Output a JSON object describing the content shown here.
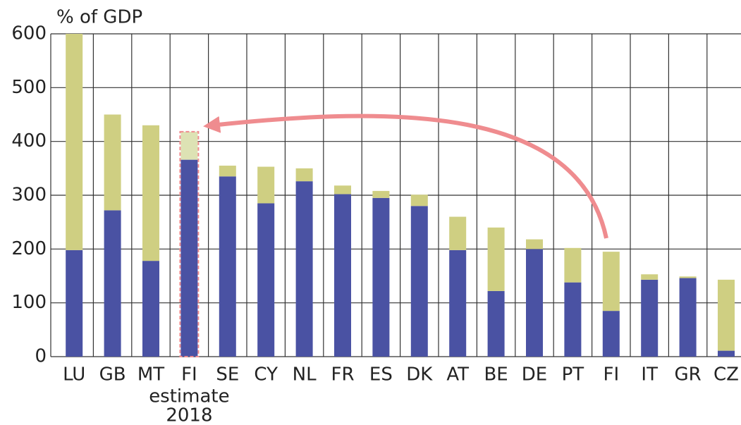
{
  "chart_data": {
    "type": "stacked_bar",
    "y_label": "% of GDP",
    "categories": [
      "LU",
      "GB",
      "MT",
      "FI",
      "SE",
      "CY",
      "NL",
      "FR",
      "ES",
      "DK",
      "AT",
      "BE",
      "DE",
      "PT",
      "FI",
      "IT",
      "GR",
      "CZ"
    ],
    "series": [
      {
        "color": "#4a52a3",
        "values": [
          198,
          272,
          178,
          366,
          335,
          285,
          326,
          302,
          295,
          280,
          198,
          122,
          200,
          138,
          85,
          143,
          146,
          11
        ]
      },
      {
        "color": "#cfcf82",
        "values": [
          402,
          178,
          252,
          52,
          20,
          68,
          24,
          16,
          13,
          21,
          62,
          118,
          18,
          64,
          110,
          10,
          3,
          132
        ]
      }
    ],
    "annotation": [
      "estimate",
      "2018"
    ],
    "highlight_index": 3,
    "highlight_color": "#dde2b4",
    "ylim": [
      0,
      600
    ],
    "yticks": [
      0,
      100,
      200,
      300,
      400,
      500,
      600
    ],
    "grid": true
  }
}
